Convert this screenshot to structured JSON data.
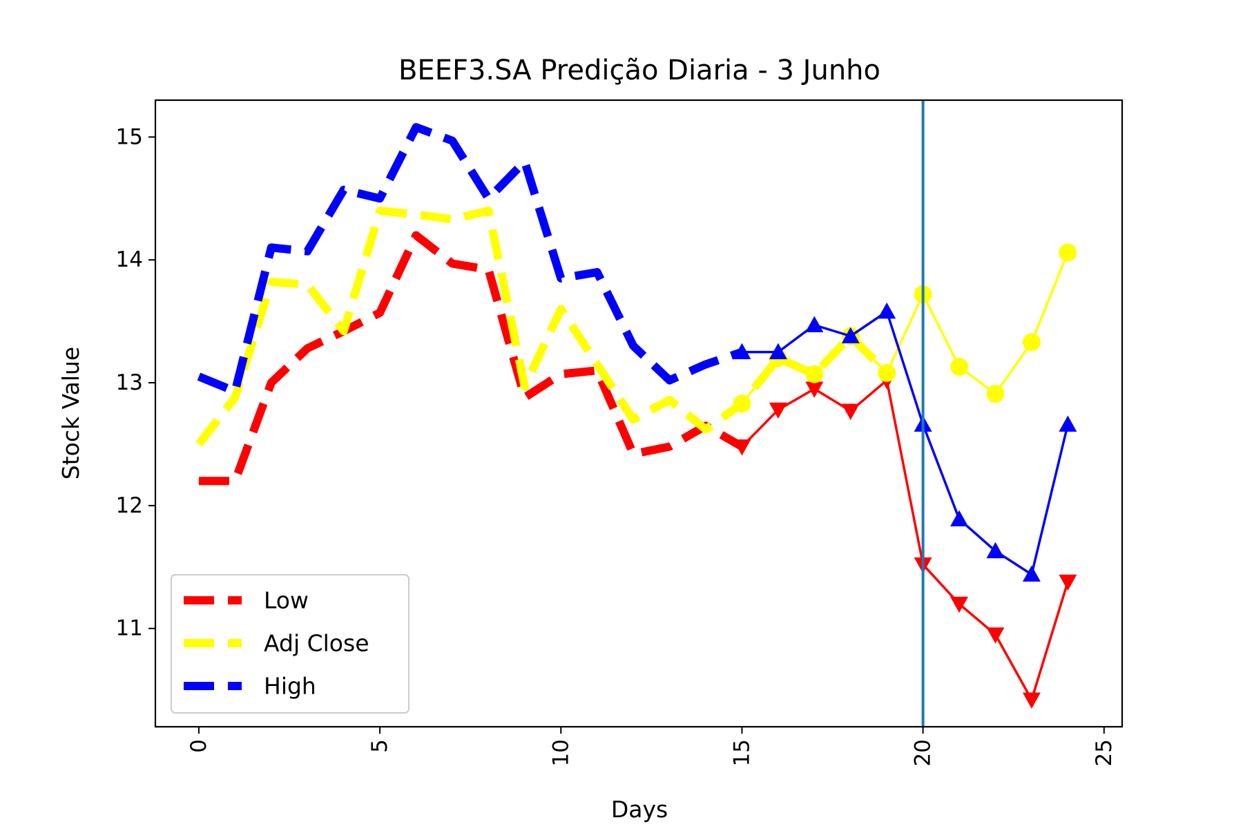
{
  "chart_data": {
    "type": "line",
    "title": "BEEF3.SA Predição Diaria - 3 Junho",
    "xlabel": "Days",
    "ylabel": "Stock Value",
    "xlim": [
      -1.2,
      25.5
    ],
    "ylim": [
      10.2,
      15.3
    ],
    "xticks": [
      0,
      5,
      10,
      15,
      20,
      25
    ],
    "yticks": [
      11,
      12,
      13,
      14,
      15
    ],
    "vline_x": 20,
    "vline_color": "#1f77b4",
    "legend_position": "lower-left",
    "grid": false,
    "series": [
      {
        "name": "Low",
        "color": "#ff0000",
        "history_x": [
          0,
          1,
          2,
          3,
          4,
          5,
          6,
          7,
          8,
          9,
          10,
          11,
          12,
          13,
          14,
          15
        ],
        "history_y": [
          12.2,
          12.2,
          13.0,
          13.28,
          13.42,
          13.57,
          14.2,
          13.97,
          13.92,
          12.88,
          13.07,
          13.1,
          12.42,
          12.48,
          12.65,
          12.48
        ],
        "prediction_x": [
          15,
          16,
          17,
          18,
          19,
          20,
          21,
          22,
          23,
          24
        ],
        "prediction_y": [
          12.48,
          12.78,
          12.95,
          12.77,
          13.02,
          11.52,
          11.2,
          10.95,
          10.42,
          11.38
        ],
        "marker": "triangle-down"
      },
      {
        "name": "Adj Close",
        "color": "#ffff00",
        "history_x": [
          0,
          1,
          2,
          3,
          4,
          5,
          6,
          7,
          8,
          9,
          10,
          11,
          12,
          13,
          14,
          15,
          16,
          17,
          18,
          19
        ],
        "history_y": [
          12.5,
          12.88,
          13.82,
          13.8,
          13.42,
          14.4,
          14.37,
          14.33,
          14.4,
          12.97,
          13.6,
          13.15,
          12.7,
          12.86,
          12.62,
          12.83,
          13.2,
          13.07,
          13.38,
          13.08
        ],
        "prediction_x": [
          15,
          16,
          17,
          18,
          19,
          20,
          21,
          22,
          23,
          24
        ],
        "prediction_y": [
          12.83,
          13.2,
          13.07,
          13.38,
          13.08,
          13.72,
          13.13,
          12.91,
          13.33,
          14.06
        ],
        "marker": "circle"
      },
      {
        "name": "High",
        "color": "#0000ff",
        "history_x": [
          0,
          1,
          2,
          3,
          4,
          5,
          6,
          7,
          8,
          9,
          10,
          11,
          12,
          13,
          14,
          15
        ],
        "history_y": [
          13.05,
          12.93,
          14.1,
          14.07,
          14.57,
          14.5,
          15.08,
          14.97,
          14.5,
          14.8,
          13.85,
          13.9,
          13.3,
          13.02,
          13.15,
          13.25
        ],
        "prediction_x": [
          15,
          16,
          17,
          18,
          19,
          20,
          21,
          22,
          23,
          24
        ],
        "prediction_y": [
          13.25,
          13.25,
          13.47,
          13.38,
          13.58,
          12.66,
          11.89,
          11.63,
          11.44,
          12.66
        ],
        "marker": "triangle-up"
      }
    ]
  }
}
